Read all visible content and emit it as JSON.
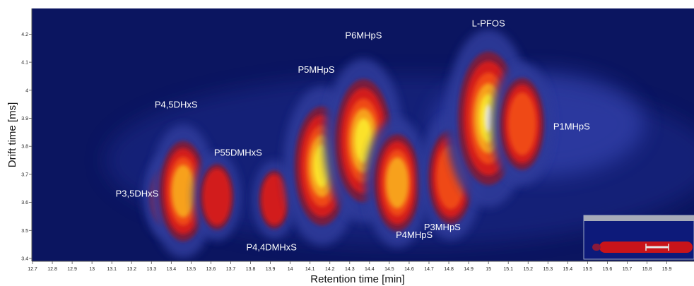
{
  "chart_data": {
    "type": "heatmap",
    "title": "",
    "xlabel": "Retention time [min]",
    "ylabel": "Drift time [ms]",
    "xlim": [
      12.65,
      15.95
    ],
    "ylim": [
      3.37,
      4.29
    ],
    "x_ticks": [
      12.7,
      12.8,
      12.9,
      13,
      13.1,
      13.2,
      13.3,
      13.4,
      13.5,
      13.6,
      13.7,
      13.8,
      13.9,
      14,
      14.1,
      14.2,
      14.3,
      14.4,
      14.5,
      14.6,
      14.7,
      14.8,
      14.9,
      15,
      15.1,
      15.2,
      15.3,
      15.4,
      15.5,
      15.6,
      15.7,
      15.8,
      15.9
    ],
    "y_ticks": [
      3.4,
      3.5,
      3.6,
      3.7,
      3.8,
      3.9,
      4,
      4.1,
      4.2
    ],
    "background_color": "#0b1560",
    "colormap": [
      "#0b1560",
      "#2d3a9a",
      "#7d1a3a",
      "#d21a1a",
      "#ef4a14",
      "#f7a11a",
      "#fbe22a",
      "#fffbd0"
    ],
    "peaks": [
      {
        "label": "P3,5DHxS",
        "rt": 13.37,
        "dt": 3.62,
        "intensity": 0.3
      },
      {
        "label": "P4,5DHxS",
        "rt": 13.46,
        "dt": 3.64,
        "intensity": 0.68
      },
      {
        "label": "P55DMHxS",
        "rt": 13.63,
        "dt": 3.62,
        "intensity": 0.35
      },
      {
        "label": "P4,4DMHxS",
        "rt": 13.92,
        "dt": 3.61,
        "intensity": 0.28
      },
      {
        "label": "P5MHpS",
        "rt": 14.16,
        "dt": 3.73,
        "intensity": 0.86
      },
      {
        "label": "P6MHpS",
        "rt": 14.37,
        "dt": 3.82,
        "intensity": 0.9
      },
      {
        "label": "P4MHpS",
        "rt": 14.54,
        "dt": 3.67,
        "intensity": 0.65
      },
      {
        "label": "P3MHpS",
        "rt": 14.81,
        "dt": 3.69,
        "intensity": 0.62
      },
      {
        "label": "L-PFOS",
        "rt": 15.0,
        "dt": 3.9,
        "intensity": 1.0
      },
      {
        "label": "P1MHpS",
        "rt": 15.17,
        "dt": 3.88,
        "intensity": 0.6
      }
    ]
  }
}
